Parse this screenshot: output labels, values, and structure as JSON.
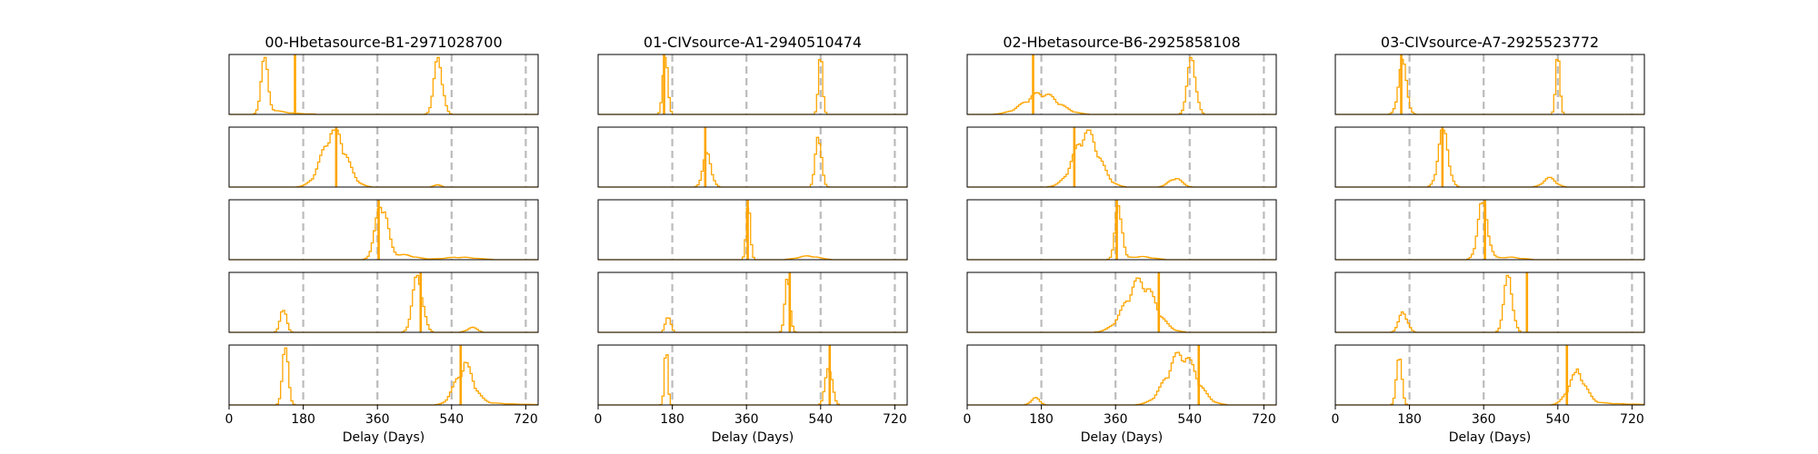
{
  "figure": {
    "xlabel": "Delay (Days)",
    "xlim": [
      0,
      750
    ],
    "xticks": [
      0,
      180,
      360,
      540,
      720
    ],
    "guide_lines": [
      180,
      360,
      540,
      720
    ],
    "colors": {
      "hist": "#FFA500",
      "guide": "#BBBBBB",
      "frame": "#000000"
    }
  },
  "chart_data": [
    {
      "type": "histogram",
      "title": "00-Hbetasource-B1-2971028700",
      "panels": [
        {
          "marker": 160,
          "peaks": [
            {
              "c": 85,
              "w": 8,
              "h": 0.9,
              "tail": 40
            },
            {
              "c": 508,
              "w": 10,
              "h": 0.95
            }
          ]
        },
        {
          "marker": 260,
          "peaks": [
            {
              "c": 255,
              "w": 28,
              "h": 0.95
            },
            {
              "c": 505,
              "w": 8,
              "h": 0.04
            }
          ]
        },
        {
          "marker": 363,
          "peaks": [
            {
              "c": 370,
              "w": 14,
              "h": 0.95
            },
            {
              "c": 420,
              "w": 30,
              "h": 0.08
            },
            {
              "c": 560,
              "w": 40,
              "h": 0.04
            }
          ]
        },
        {
          "marker": 465,
          "peaks": [
            {
              "c": 132,
              "w": 7,
              "h": 0.45
            },
            {
              "c": 458,
              "w": 12,
              "h": 0.95
            },
            {
              "c": 590,
              "w": 12,
              "h": 0.08
            }
          ]
        },
        {
          "marker": 562,
          "peaks": [
            {
              "c": 137,
              "w": 7,
              "h": 0.95
            },
            {
              "c": 570,
              "w": 22,
              "h": 0.6,
              "tail": 70
            }
          ]
        }
      ]
    },
    {
      "type": "histogram",
      "title": "01-CIVsource-A1-2940510474",
      "panels": [
        {
          "marker": 160,
          "peaks": [
            {
              "c": 163,
              "w": 6,
              "h": 0.95
            },
            {
              "c": 540,
              "w": 5,
              "h": 0.95
            }
          ]
        },
        {
          "marker": 260,
          "peaks": [
            {
              "c": 265,
              "w": 10,
              "h": 0.55
            },
            {
              "c": 535,
              "w": 7,
              "h": 0.95
            }
          ]
        },
        {
          "marker": 363,
          "peaks": [
            {
              "c": 365,
              "w": 5,
              "h": 0.95
            },
            {
              "c": 510,
              "w": 25,
              "h": 0.06
            }
          ]
        },
        {
          "marker": 465,
          "peaks": [
            {
              "c": 170,
              "w": 6,
              "h": 0.3
            },
            {
              "c": 460,
              "w": 6,
              "h": 0.95
            }
          ]
        },
        {
          "marker": 562,
          "peaks": [
            {
              "c": 165,
              "w": 4,
              "h": 0.95
            },
            {
              "c": 560,
              "w": 8,
              "h": 0.7
            }
          ]
        }
      ]
    },
    {
      "type": "histogram",
      "title": "02-Hbetasource-B6-2925858108",
      "panels": [
        {
          "marker": 160,
          "peaks": [
            {
              "c": 180,
              "w": 40,
              "h": 0.35
            },
            {
              "c": 545,
              "w": 10,
              "h": 0.95
            }
          ]
        },
        {
          "marker": 260,
          "peaks": [
            {
              "c": 290,
              "w": 30,
              "h": 0.9
            },
            {
              "c": 505,
              "w": 15,
              "h": 0.15
            }
          ]
        },
        {
          "marker": 363,
          "peaks": [
            {
              "c": 368,
              "w": 8,
              "h": 0.95
            },
            {
              "c": 420,
              "w": 30,
              "h": 0.05
            }
          ]
        },
        {
          "marker": 465,
          "peaks": [
            {
              "c": 420,
              "w": 35,
              "h": 0.85
            }
          ]
        },
        {
          "marker": 562,
          "peaks": [
            {
              "c": 165,
              "w": 10,
              "h": 0.12
            },
            {
              "c": 520,
              "w": 35,
              "h": 0.85
            }
          ]
        }
      ]
    },
    {
      "type": "histogram",
      "title": "03-CIVsource-A7-2925523772",
      "panels": [
        {
          "marker": 160,
          "peaks": [
            {
              "c": 163,
              "w": 10,
              "h": 0.85
            },
            {
              "c": 540,
              "w": 5,
              "h": 0.95
            }
          ]
        },
        {
          "marker": 260,
          "peaks": [
            {
              "c": 262,
              "w": 12,
              "h": 0.95
            },
            {
              "c": 520,
              "w": 15,
              "h": 0.15
            }
          ]
        },
        {
          "marker": 363,
          "peaks": [
            {
              "c": 358,
              "w": 12,
              "h": 0.95
            },
            {
              "c": 420,
              "w": 30,
              "h": 0.04
            }
          ]
        },
        {
          "marker": 465,
          "peaks": [
            {
              "c": 165,
              "w": 10,
              "h": 0.35
            },
            {
              "c": 420,
              "w": 10,
              "h": 0.95
            }
          ]
        },
        {
          "marker": 562,
          "peaks": [
            {
              "c": 155,
              "w": 6,
              "h": 0.95
            },
            {
              "c": 585,
              "w": 20,
              "h": 0.5,
              "tail": 80
            }
          ]
        }
      ]
    }
  ]
}
